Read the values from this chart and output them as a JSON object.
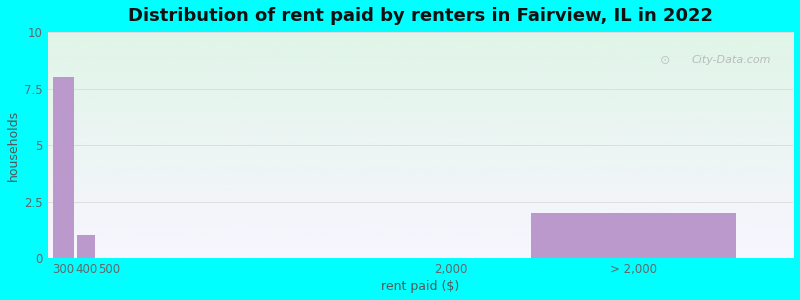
{
  "title": "Distribution of rent paid by renters in Fairview, IL in 2022",
  "xlabel": "rent paid ($)",
  "ylabel": "households",
  "categories": [
    "300",
    "400",
    "500",
    "2,000",
    "> 2,000"
  ],
  "x_numeric": [
    300,
    400,
    500,
    2000,
    2800
  ],
  "values": [
    8,
    1,
    0,
    0,
    2
  ],
  "bar_color": "#bb99cc",
  "bar_widths": [
    90,
    80,
    0,
    0,
    900
  ],
  "xlim": [
    230,
    3500
  ],
  "ylim": [
    0,
    10
  ],
  "yticks": [
    0,
    2.5,
    5,
    7.5,
    10
  ],
  "xtick_positions": [
    300,
    400,
    500,
    2000,
    2800
  ],
  "background_outer": "#00ffff",
  "bg_top_color": "#e0f5e8",
  "bg_bottom_color": "#f0edf8",
  "title_fontsize": 13,
  "axis_label_fontsize": 9,
  "tick_fontsize": 8.5,
  "watermark_text": "City-Data.com"
}
